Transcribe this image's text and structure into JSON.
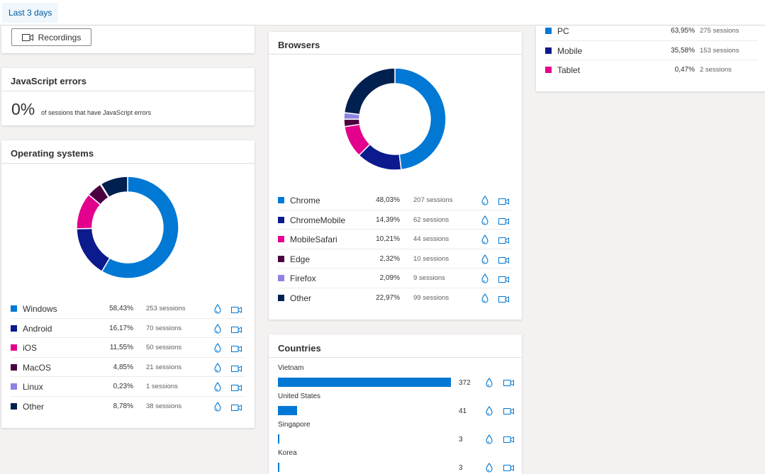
{
  "filter": {
    "label": "Last 3 days"
  },
  "recordings": {
    "label": "Recordings"
  },
  "js_errors": {
    "title": "JavaScript errors",
    "value": "0%",
    "note": "of sessions that have JavaScript errors"
  },
  "operating_systems": {
    "title": "Operating systems",
    "items": [
      {
        "name": "Windows",
        "pct": "58,43%",
        "sessions": "253 sessions",
        "value": 58.43,
        "color": "#0078d4"
      },
      {
        "name": "Android",
        "pct": "16,17%",
        "sessions": "70 sessions",
        "value": 16.17,
        "color": "#0b1a8c"
      },
      {
        "name": "iOS",
        "pct": "11,55%",
        "sessions": "50 sessions",
        "value": 11.55,
        "color": "#e3008c"
      },
      {
        "name": "MacOS",
        "pct": "4,85%",
        "sessions": "21 sessions",
        "value": 4.85,
        "color": "#4b003f"
      },
      {
        "name": "Linux",
        "pct": "0,23%",
        "sessions": "1 sessions",
        "value": 0.23,
        "color": "#8e83e2"
      },
      {
        "name": "Other",
        "pct": "8,78%",
        "sessions": "38 sessions",
        "value": 8.78,
        "color": "#002050"
      }
    ]
  },
  "browsers": {
    "title": "Browsers",
    "items": [
      {
        "name": "Chrome",
        "pct": "48,03%",
        "sessions": "207 sessions",
        "value": 48.03,
        "color": "#0078d4"
      },
      {
        "name": "ChromeMobile",
        "pct": "14,39%",
        "sessions": "62 sessions",
        "value": 14.39,
        "color": "#0b1a8c"
      },
      {
        "name": "MobileSafari",
        "pct": "10,21%",
        "sessions": "44 sessions",
        "value": 10.21,
        "color": "#e3008c"
      },
      {
        "name": "Edge",
        "pct": "2,32%",
        "sessions": "10 sessions",
        "value": 2.32,
        "color": "#4b003f"
      },
      {
        "name": "Firefox",
        "pct": "2,09%",
        "sessions": "9 sessions",
        "value": 2.09,
        "color": "#8e83e2"
      },
      {
        "name": "Other",
        "pct": "22,97%",
        "sessions": "99 sessions",
        "value": 22.97,
        "color": "#002050"
      }
    ]
  },
  "devices": {
    "items": [
      {
        "name": "PC",
        "pct": "63,95%",
        "sessions": "275 sessions",
        "color": "#0078d4"
      },
      {
        "name": "Mobile",
        "pct": "35,58%",
        "sessions": "153 sessions",
        "color": "#0b1a8c"
      },
      {
        "name": "Tablet",
        "pct": "0,47%",
        "sessions": "2 sessions",
        "color": "#e3008c"
      }
    ]
  },
  "countries": {
    "title": "Countries",
    "items": [
      {
        "name": "Vietnam",
        "count": "372",
        "value": 372
      },
      {
        "name": "United States",
        "count": "41",
        "value": 41
      },
      {
        "name": "Singapore",
        "count": "3",
        "value": 3
      },
      {
        "name": "Korea",
        "count": "3",
        "value": 3
      }
    ]
  }
}
